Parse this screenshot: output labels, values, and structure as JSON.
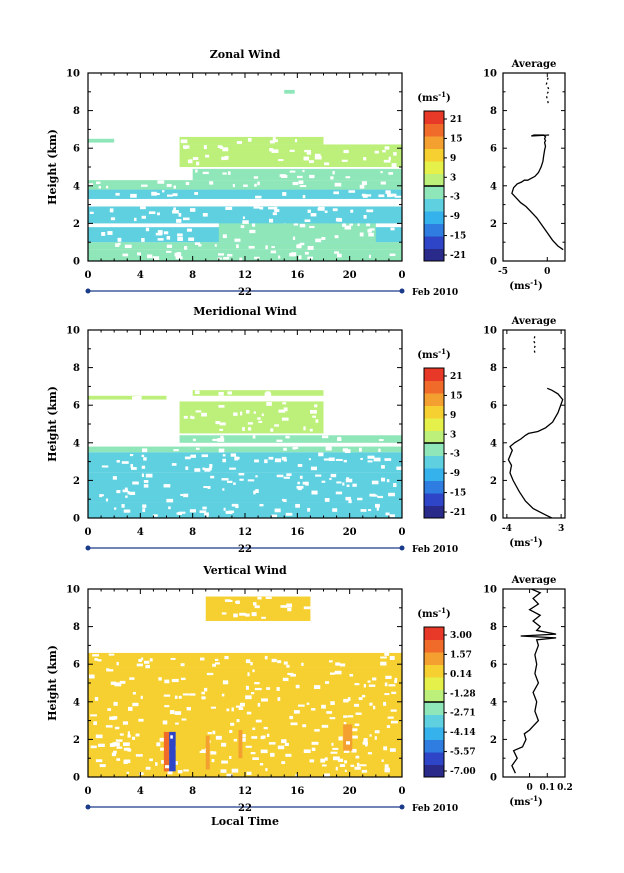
{
  "figure": {
    "colorbar_unit_base": "(ms",
    "colorbar_unit_exp": "-1",
    "colorbar_unit_close": ")",
    "profile_unit_base": "(ms",
    "profile_unit_exp": "-1",
    "profile_unit_close": ")",
    "date_day": "22",
    "date_month_year": "Feb 2010",
    "xlabel_bottom": "Local Time"
  },
  "chart_data": [
    {
      "type": "heatmap",
      "title": "Zonal Wind",
      "ylabel": "Height (km)",
      "xlim": [
        0,
        24
      ],
      "ylim": [
        0,
        10
      ],
      "x_ticks": [
        "0",
        "4",
        "8",
        "12",
        "16",
        "20",
        "0"
      ],
      "y_ticks": [
        "0",
        "2",
        "4",
        "6",
        "8",
        "10"
      ],
      "colorbar_ticks": [
        "21",
        "15",
        "9",
        "3",
        "-3",
        "-9",
        "-15",
        "-21"
      ],
      "colorbar_range": [
        -24,
        24
      ],
      "colors": [
        "#2a2a8a",
        "#2e45c8",
        "#2f7de0",
        "#35b1ec",
        "#5fd0e0",
        "#8fe6b8",
        "#bdf07a",
        "#e6f04a",
        "#f5d030",
        "#f4a030",
        "#f06a2a",
        "#e83828"
      ],
      "bands": [
        {
          "x0": 0,
          "x1": 24,
          "y0": 0.0,
          "y1": 0.6,
          "value": -1
        },
        {
          "x0": 0,
          "x1": 24,
          "y0": 0.6,
          "y1": 1.0,
          "value": -3
        },
        {
          "x0": 0,
          "x1": 24,
          "y0": 1.0,
          "y1": 1.8,
          "value": -5
        },
        {
          "x0": 10,
          "x1": 22,
          "y0": 1.0,
          "y1": 2.8,
          "value": -1
        },
        {
          "x0": 0,
          "x1": 24,
          "y0": 2.0,
          "y1": 2.9,
          "value": -5
        },
        {
          "x0": 0,
          "x1": 24,
          "y0": 3.3,
          "y1": 3.8,
          "value": -7
        },
        {
          "x0": 0,
          "x1": 24,
          "y0": 3.8,
          "y1": 4.3,
          "value": -3
        },
        {
          "x0": 8,
          "x1": 24,
          "y0": 4.3,
          "y1": 4.9,
          "value": -1
        },
        {
          "x0": 7,
          "x1": 24,
          "y0": 5.0,
          "y1": 6.2,
          "value": 1
        },
        {
          "x0": 7,
          "x1": 18,
          "y0": 6.2,
          "y1": 6.6,
          "value": 0
        },
        {
          "x0": 0,
          "x1": 2,
          "y0": 6.3,
          "y1": 6.5,
          "value": -3
        },
        {
          "x0": 15.0,
          "x1": 15.8,
          "y0": 8.9,
          "y1": 9.1,
          "value": -3
        }
      ]
    },
    {
      "type": "heatmap",
      "title": "Meridional Wind",
      "ylabel": "Height (km)",
      "xlim": [
        0,
        24
      ],
      "ylim": [
        0,
        10
      ],
      "x_ticks": [
        "0",
        "4",
        "8",
        "12",
        "16",
        "20",
        "0"
      ],
      "y_ticks": [
        "0",
        "2",
        "4",
        "6",
        "8",
        "10"
      ],
      "colorbar_ticks": [
        "21",
        "15",
        "9",
        "3",
        "-3",
        "-9",
        "-15",
        "-21"
      ],
      "colorbar_range": [
        -24,
        24
      ],
      "colors": [
        "#2a2a8a",
        "#2e45c8",
        "#2f7de0",
        "#35b1ec",
        "#5fd0e0",
        "#8fe6b8",
        "#bdf07a",
        "#e6f04a",
        "#f5d030",
        "#f4a030",
        "#f06a2a",
        "#e83828"
      ],
      "bands": [
        {
          "x0": 0,
          "x1": 24,
          "y0": 0.0,
          "y1": 0.8,
          "value": -5
        },
        {
          "x0": 0,
          "x1": 24,
          "y0": 0.8,
          "y1": 2.4,
          "value": -7
        },
        {
          "x0": 0,
          "x1": 24,
          "y0": 2.4,
          "y1": 3.5,
          "value": -5
        },
        {
          "x0": 0,
          "x1": 24,
          "y0": 3.5,
          "y1": 3.8,
          "value": -3
        },
        {
          "x0": 7,
          "x1": 24,
          "y0": 4.0,
          "y1": 4.4,
          "value": -1
        },
        {
          "x0": 7,
          "x1": 18,
          "y0": 4.5,
          "y1": 6.2,
          "value": 1
        },
        {
          "x0": 0,
          "x1": 6,
          "y0": 6.3,
          "y1": 6.5,
          "value": 1
        },
        {
          "x0": 8,
          "x1": 18,
          "y0": 6.5,
          "y1": 6.8,
          "value": 1
        }
      ]
    },
    {
      "type": "heatmap",
      "title": "Vertical Wind",
      "ylabel": "Height (km)",
      "xlabel": "Local Time",
      "xlim": [
        0,
        24
      ],
      "ylim": [
        0,
        10
      ],
      "x_ticks": [
        "0",
        "4",
        "8",
        "12",
        "16",
        "20",
        "0"
      ],
      "y_ticks": [
        "0",
        "2",
        "4",
        "6",
        "8",
        "10"
      ],
      "colorbar_ticks": [
        "3.00",
        "1.57",
        "0.14",
        "-1.28",
        "-2.71",
        "-4.14",
        "-5.57",
        "-7.00"
      ],
      "colorbar_range": [
        -8.0,
        4.0
      ],
      "colors": [
        "#2a2a8a",
        "#2e45c8",
        "#2f7de0",
        "#35b1ec",
        "#5fd0e0",
        "#8fe6b8",
        "#bdf07a",
        "#e6f04a",
        "#f5d030",
        "#f4a030",
        "#f06a2a",
        "#e83828"
      ],
      "bands": [
        {
          "x0": 0,
          "x1": 24,
          "y0": 0.0,
          "y1": 5.8,
          "value": 0.5
        },
        {
          "x0": 0,
          "x1": 24,
          "y0": 5.8,
          "y1": 6.6,
          "value": 0.5
        },
        {
          "x0": 9,
          "x1": 17,
          "y0": 8.3,
          "y1": 9.6,
          "value": 0.5
        },
        {
          "x0": 5.8,
          "x1": 6.2,
          "y0": 0.3,
          "y1": 2.4,
          "value": 2.5
        },
        {
          "x0": 6.2,
          "x1": 6.7,
          "y0": 0.3,
          "y1": 2.4,
          "value": -7.0
        },
        {
          "x0": 9.0,
          "x1": 9.3,
          "y0": 0.4,
          "y1": 2.2,
          "value": 1.8
        },
        {
          "x0": 11.5,
          "x1": 11.8,
          "y0": 1.0,
          "y1": 2.5,
          "value": 1.5
        },
        {
          "x0": 19.5,
          "x1": 20.2,
          "y0": 1.4,
          "y1": 2.8,
          "value": 1.5
        }
      ]
    },
    {
      "type": "line",
      "title": "Average",
      "xlim": [
        -5,
        2
      ],
      "ylim": [
        0,
        10
      ],
      "x_ticks": [
        "-5",
        "0"
      ],
      "x_tick_values": [
        -5,
        0
      ],
      "y_ticks": [
        "0",
        "2",
        "4",
        "6",
        "8",
        "10"
      ],
      "x": [
        1.8,
        1.2,
        0.6,
        0.0,
        -0.6,
        -1.2,
        -1.8,
        -2.4,
        -3.0,
        -3.6,
        -4.0,
        -3.8,
        -3.4,
        -2.9,
        -2.6,
        -2.2,
        -1.8,
        -1.4,
        -1.0,
        -0.7,
        -0.5,
        -0.4,
        -0.3,
        -0.2,
        -0.3,
        -0.2,
        -0.3,
        -0.2,
        -0.4,
        -0.6,
        -0.9,
        -1.2,
        -1.5,
        -1.8,
        0.2
      ],
      "y": [
        0.6,
        0.8,
        1.1,
        1.5,
        1.9,
        2.3,
        2.6,
        2.9,
        3.1,
        3.4,
        3.6,
        3.9,
        4.1,
        4.2,
        4.3,
        4.3,
        4.4,
        4.5,
        4.7,
        5.0,
        5.3,
        5.6,
        5.9,
        6.1,
        6.3,
        6.4,
        6.5,
        6.6,
        6.7,
        6.7,
        6.7,
        6.7,
        6.7,
        6.65,
        6.7
      ],
      "upper_x": [
        0.1,
        -0.1,
        0.2,
        -0.1,
        0.1
      ],
      "upper_y": [
        8.4,
        8.8,
        9.1,
        9.4,
        9.8
      ]
    },
    {
      "type": "line",
      "title": "Average",
      "xlim": [
        -4.5,
        3.5
      ],
      "ylim": [
        0,
        10
      ],
      "x_ticks": [
        "-4",
        "3"
      ],
      "x_tick_values": [
        -4,
        3
      ],
      "y_ticks": [
        "0",
        "2",
        "4",
        "6",
        "8",
        "10"
      ],
      "x": [
        1.8,
        0.8,
        -0.6,
        -1.6,
        -2.4,
        -3.2,
        -3.6,
        -3.4,
        -3.8,
        -3.3,
        -3.6,
        -3.0,
        -2.2,
        -1.6,
        -1.2,
        0.0,
        1.0,
        1.9,
        2.6,
        3.2,
        2.6,
        1.8,
        1.2
      ],
      "y": [
        0.0,
        0.2,
        0.5,
        0.9,
        1.4,
        2.0,
        2.4,
        2.8,
        3.1,
        3.6,
        3.8,
        4.0,
        4.2,
        4.4,
        4.5,
        4.6,
        4.8,
        5.1,
        5.6,
        6.3,
        6.6,
        6.8,
        6.9
      ],
      "upper_x": [
        -0.4,
        -0.5,
        -0.3,
        -0.5,
        -0.4
      ],
      "upper_y": [
        8.8,
        9.0,
        9.2,
        9.4,
        9.7
      ]
    },
    {
      "type": "line",
      "title": "Average",
      "xlim": [
        -0.15,
        0.2
      ],
      "ylim": [
        0,
        10
      ],
      "x_ticks": [
        "0",
        "0.1",
        "0.2"
      ],
      "x_tick_values": [
        0,
        0.1,
        0.2
      ],
      "y_ticks": [
        "0",
        "2",
        "4",
        "6",
        "8",
        "10"
      ],
      "x": [
        -0.08,
        -0.1,
        -0.07,
        -0.09,
        -0.04,
        -0.02,
        -0.03,
        0.0,
        0.02,
        0.05,
        0.03,
        0.04,
        0.02,
        0.05,
        0.03,
        0.04,
        0.03,
        0.05,
        0.04,
        0.15,
        -0.05,
        0.15,
        0.04,
        0.06,
        0.02,
        0.06,
        0.0,
        0.05,
        0.02,
        0.06,
        0.01
      ],
      "y": [
        0.2,
        0.6,
        1.0,
        1.4,
        1.6,
        2.0,
        2.3,
        2.5,
        2.7,
        3.0,
        3.5,
        4.0,
        4.5,
        5.0,
        5.5,
        6.0,
        6.5,
        7.0,
        7.3,
        7.4,
        7.5,
        7.6,
        7.8,
        8.0,
        8.3,
        8.6,
        8.9,
        9.2,
        9.5,
        9.8,
        10.0
      ]
    }
  ]
}
